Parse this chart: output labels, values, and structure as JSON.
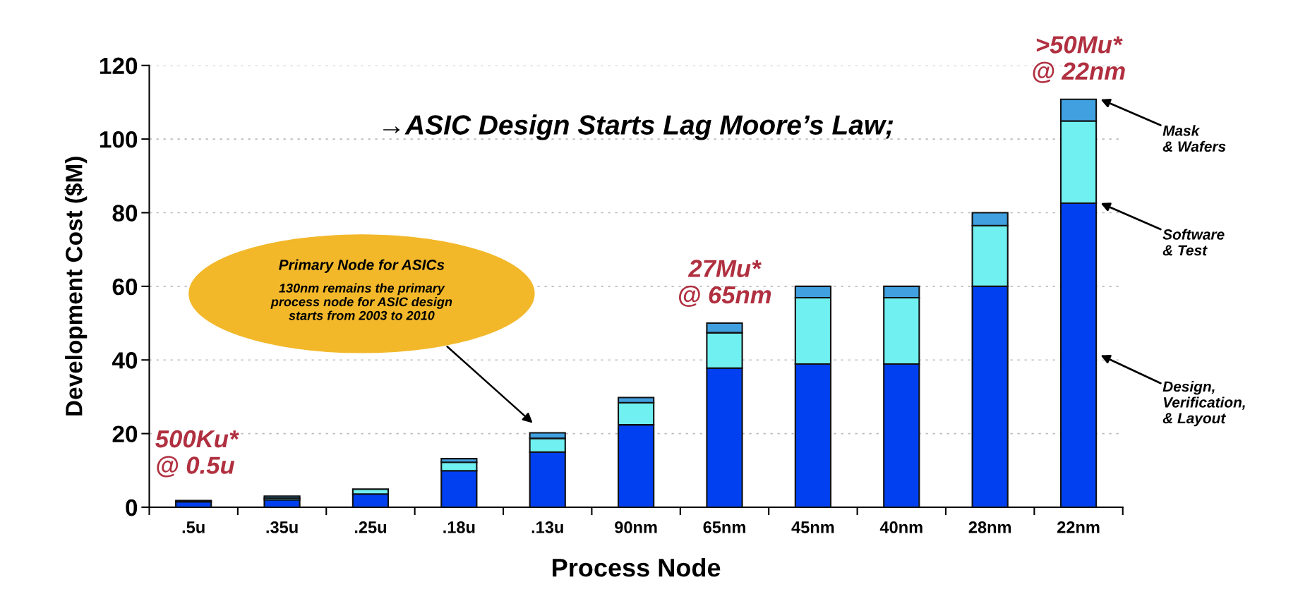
{
  "chart_data": {
    "type": "bar",
    "stacked": true,
    "ylabel": "Development Cost ($M)",
    "xlabel": "Process Node",
    "categories": [
      ".5u",
      ".35u",
      ".25u",
      ".18u",
      ".13u",
      "90nm",
      "65nm",
      "45nm",
      "40nm",
      "28nm",
      "22nm"
    ],
    "series": [
      {
        "name": "Design,\nVerification,\n& Layout",
        "color": "#0040f0",
        "values": [
          1.5,
          2,
          3.6,
          9.9,
          15,
          22.4,
          37.8,
          38.9,
          38.9,
          60,
          82.6
        ]
      },
      {
        "name": "Software\n& Test",
        "color": "#70f0f0",
        "values": [
          null,
          0.5,
          1.3,
          2.3,
          3.7,
          6,
          9.6,
          18,
          18,
          16.5,
          22.3
        ]
      },
      {
        "name": "Mask\n& Wafers",
        "color": "#40a0e0",
        "values": [
          0.3,
          0.5,
          null,
          1.0,
          1.5,
          1.4,
          2.6,
          3.1,
          3.1,
          3.5,
          5.9
        ]
      }
    ],
    "ylim": [
      0,
      120
    ],
    "yticks": [
      0,
      20,
      40,
      60,
      80,
      100,
      120
    ],
    "grid": "y",
    "annotations": [
      "→ASIC Design Starts Lag Moore’s Law;",
      "500Ku*\n@ 0.5u",
      {
        "text": "27Mu*\n@ 65nm",
        "x": "65nm",
        "y": 50
      },
      {
        "text": ">50Mu*\n@ 22nm",
        "x": "22nm",
        "y": 110.8
      },
      "Primary Node for ASICs\n130nm remains the primary\nprocess node for ASIC design\nstarts from 2003 to 2010"
    ]
  }
}
